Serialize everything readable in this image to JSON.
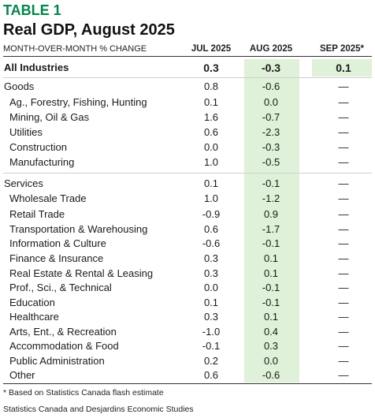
{
  "table_label": "TABLE 1",
  "title": "Real GDP, August 2025",
  "header": {
    "left": "MONTH-OVER-MONTH % CHANGE",
    "col1": "JUL 2025",
    "col2": "AUG 2025",
    "col3": "SEP 2025*"
  },
  "rows": [
    {
      "label": "All Industries",
      "jul": "0.3",
      "aug": "-0.3",
      "sep": "0.1"
    },
    {
      "label": "Goods",
      "jul": "0.8",
      "aug": "-0.6",
      "sep": "—"
    },
    {
      "label": "Ag., Forestry, Fishing, Hunting",
      "jul": "0.1",
      "aug": "0.0",
      "sep": "—"
    },
    {
      "label": "Mining, Oil & Gas",
      "jul": "1.6",
      "aug": "-0.7",
      "sep": "—"
    },
    {
      "label": "Utilities",
      "jul": "0.6",
      "aug": "-2.3",
      "sep": "—"
    },
    {
      "label": "Construction",
      "jul": "0.0",
      "aug": "-0.3",
      "sep": "—"
    },
    {
      "label": "Manufacturing",
      "jul": "1.0",
      "aug": "-0.5",
      "sep": "—"
    },
    {
      "label": "Services",
      "jul": "0.1",
      "aug": "-0.1",
      "sep": "—"
    },
    {
      "label": "Wholesale Trade",
      "jul": "1.0",
      "aug": "-1.2",
      "sep": "—"
    },
    {
      "label": "Retail Trade",
      "jul": "-0.9",
      "aug": "0.9",
      "sep": "—"
    },
    {
      "label": "Transportation & Warehousing",
      "jul": "0.6",
      "aug": "-1.7",
      "sep": "—"
    },
    {
      "label": "Information & Culture",
      "jul": "-0.6",
      "aug": "-0.1",
      "sep": "—"
    },
    {
      "label": "Finance & Insurance",
      "jul": "0.3",
      "aug": "0.1",
      "sep": "—"
    },
    {
      "label": "Real Estate & Rental & Leasing",
      "jul": "0.3",
      "aug": "0.1",
      "sep": "—"
    },
    {
      "label": "Prof., Sci., & Technical",
      "jul": "0.0",
      "aug": "-0.1",
      "sep": "—"
    },
    {
      "label": "Education",
      "jul": "0.1",
      "aug": "-0.1",
      "sep": "—"
    },
    {
      "label": "Healthcare",
      "jul": "0.3",
      "aug": "0.1",
      "sep": "—"
    },
    {
      "label": "Arts, Ent., & Recreation",
      "jul": "-1.0",
      "aug": "0.4",
      "sep": "—"
    },
    {
      "label": "Accommodation & Food",
      "jul": "-0.1",
      "aug": "0.3",
      "sep": "—"
    },
    {
      "label": "Public Administration",
      "jul": "0.2",
      "aug": "0.0",
      "sep": "—"
    },
    {
      "label": "Other",
      "jul": "0.6",
      "aug": "-0.6",
      "sep": "—"
    }
  ],
  "footnote": "* Based on Statistics Canada flash estimate",
  "source": "Statistics Canada and Desjardins Economic Studies",
  "colors": {
    "accent": "#00864b",
    "shade": "#dff1d8"
  }
}
